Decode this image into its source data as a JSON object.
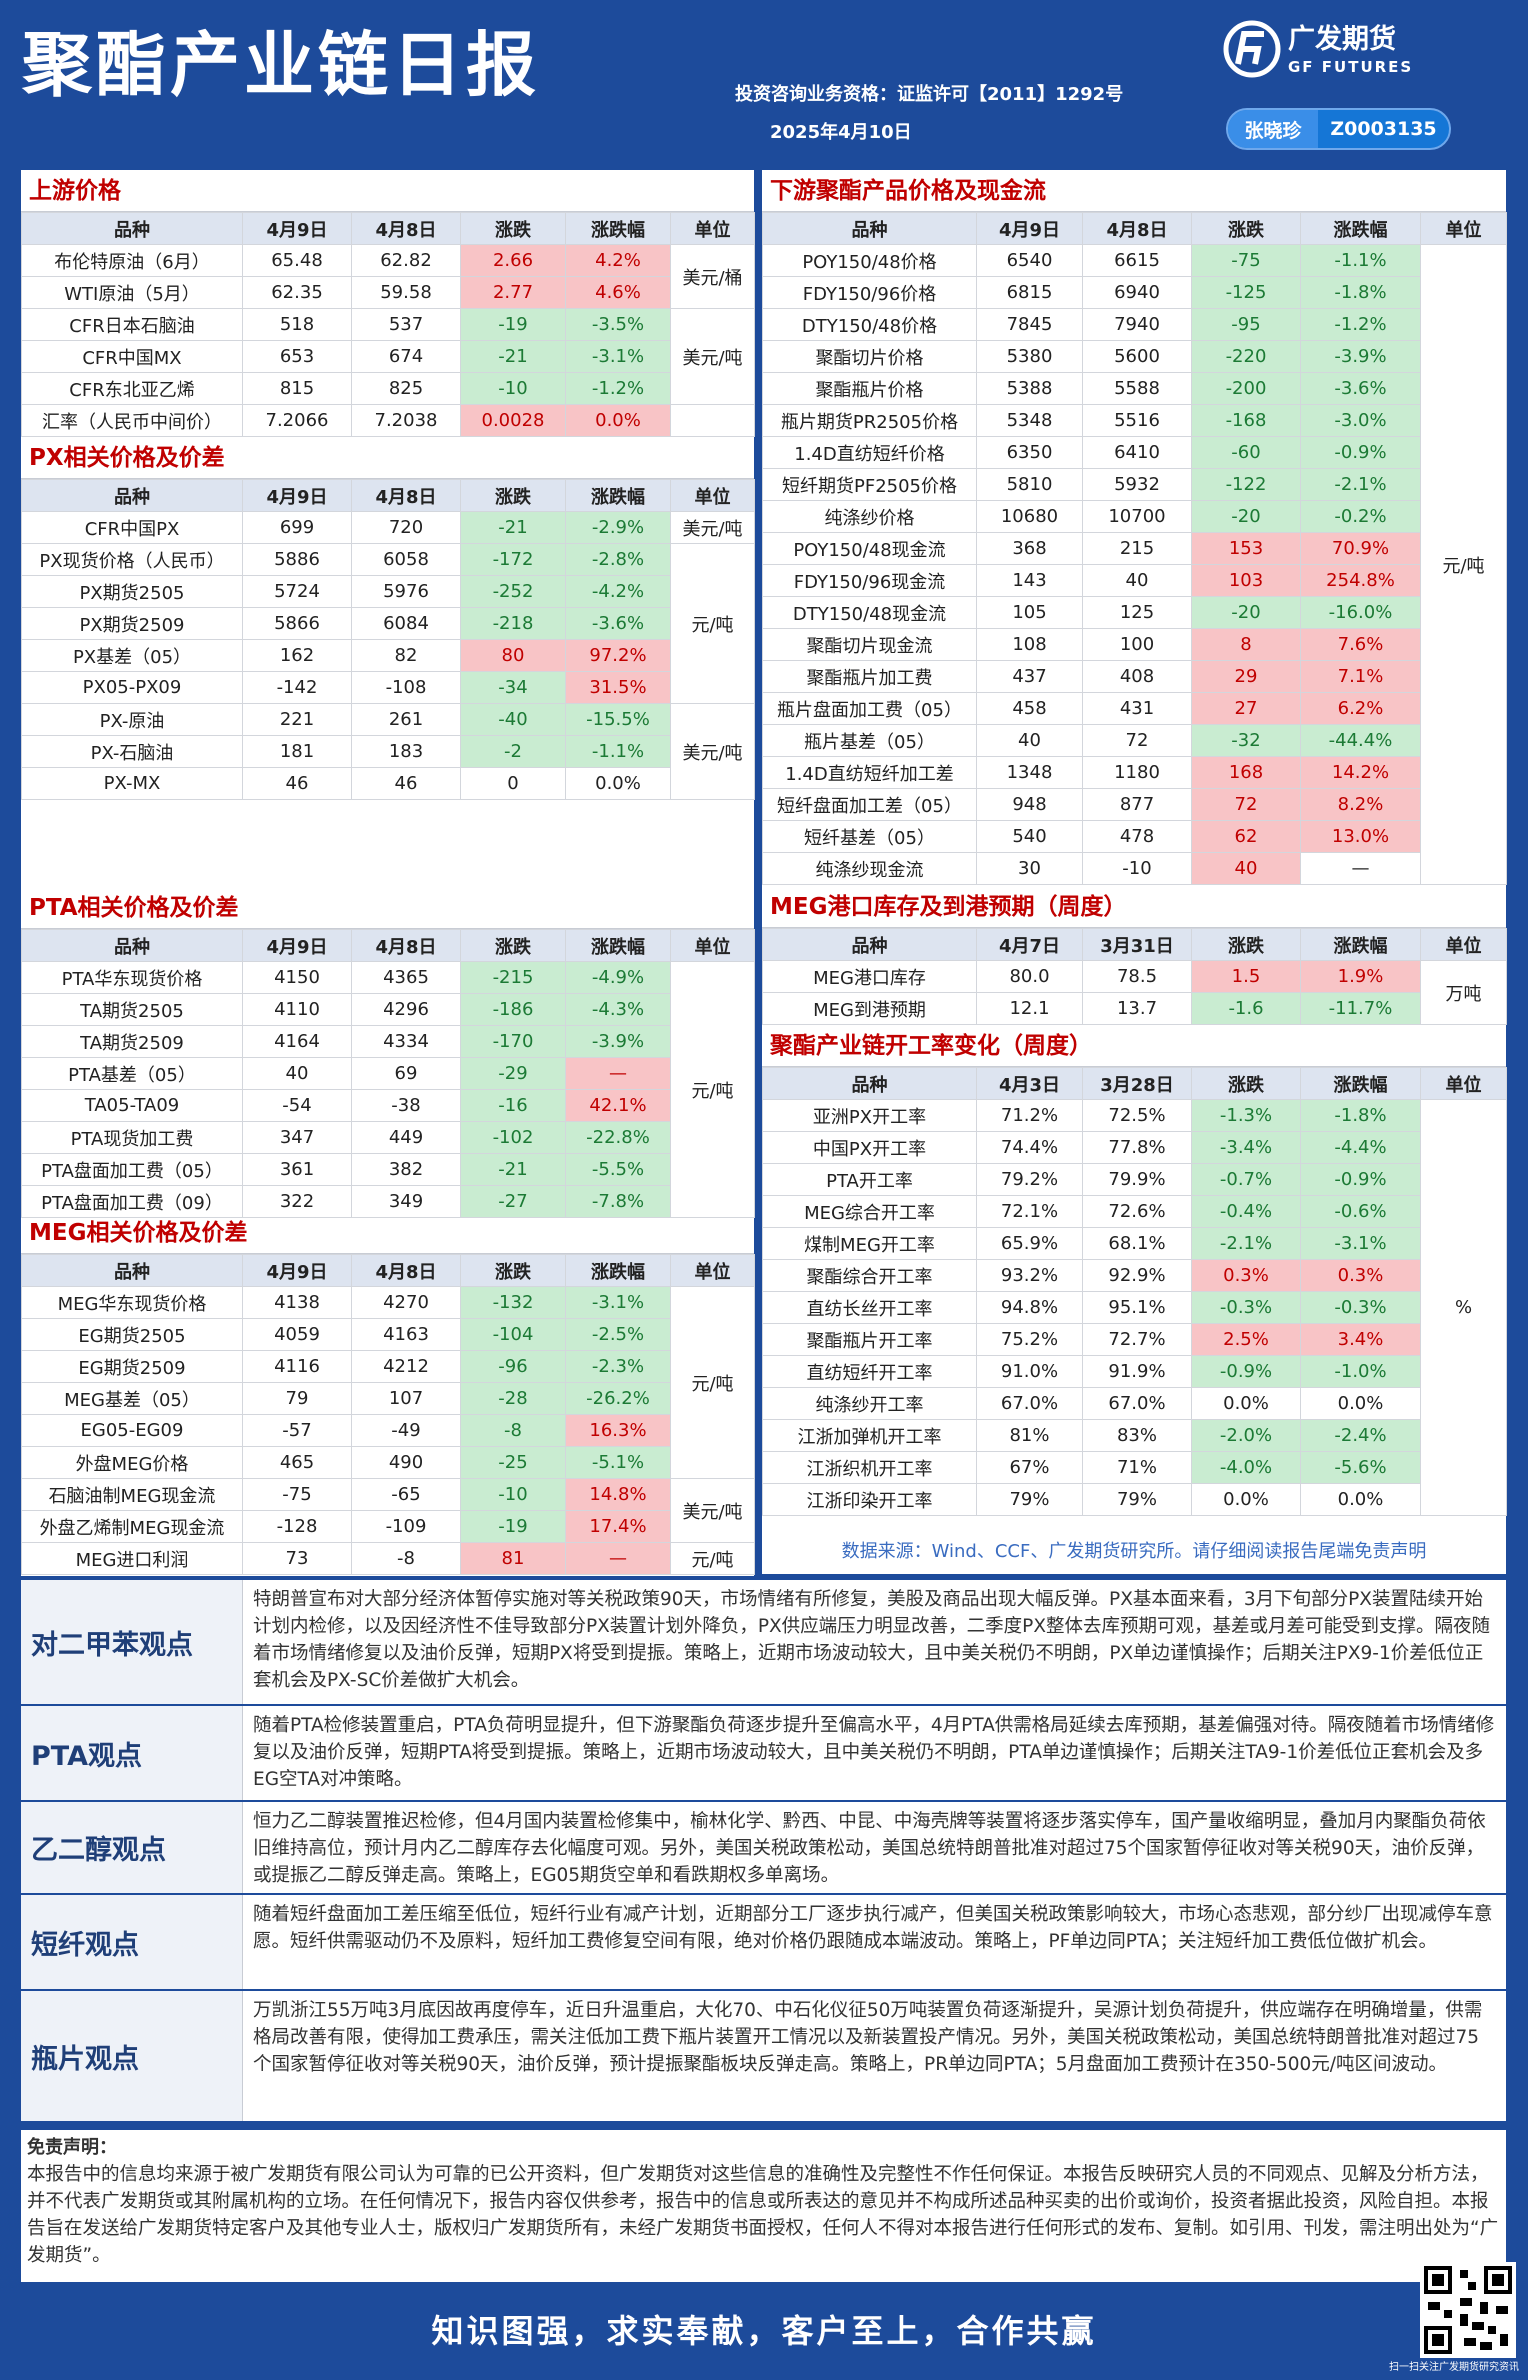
{
  "header": {
    "title": "聚酯产业链日报",
    "license": "投资咨询业务资格：证监许可【2011】1292号",
    "date": "2025年4月10日",
    "author": "张晓珍",
    "author_id": "Z0003135",
    "logo_cn": "广发期货",
    "logo_en": "GF FUTURES"
  },
  "tables": [
    {
      "title": "上游价格",
      "headers": [
        "品种",
        "4月9日",
        "4月8日",
        "涨跌",
        "涨跌幅",
        "单位"
      ],
      "rows": [
        [
          "布伦特原油（6月）",
          "65.48",
          "62.82",
          "2.66",
          "4.2%"
        ],
        [
          "WTI原油（5月）",
          "62.35",
          "59.58",
          "2.77",
          "4.6%"
        ],
        [
          "CFR日本石脑油",
          "518",
          "537",
          "-19",
          "-3.5%"
        ],
        [
          "CFR中国MX",
          "653",
          "674",
          "-21",
          "-3.1%"
        ],
        [
          "CFR东北亚乙烯",
          "815",
          "825",
          "-10",
          "-1.2%"
        ],
        [
          "汇率（人民币中间价）",
          "7.2066",
          "7.2038",
          "0.0028",
          "0.0%"
        ]
      ],
      "units": [
        {
          "text": "美元/桶",
          "start": 0,
          "span": 2
        },
        {
          "text": "美元/吨",
          "start": 2,
          "span": 3
        }
      ],
      "tone_overrides": [
        {
          "row": 5,
          "tones": [
            "up",
            "up"
          ]
        }
      ]
    },
    {
      "title": "PX相关价格及价差",
      "headers": [
        "品种",
        "4月9日",
        "4月8日",
        "涨跌",
        "涨跌幅",
        "单位"
      ],
      "rows": [
        [
          "CFR中国PX",
          "699",
          "720",
          "-21",
          "-2.9%"
        ],
        [
          "PX现货价格（人民币）",
          "5886",
          "6058",
          "-172",
          "-2.8%"
        ],
        [
          "PX期货2505",
          "5724",
          "5976",
          "-252",
          "-4.2%"
        ],
        [
          "PX期货2509",
          "5866",
          "6084",
          "-218",
          "-3.6%"
        ],
        [
          "PX基差（05）",
          "162",
          "82",
          "80",
          "97.2%"
        ],
        [
          "PX05-PX09",
          "-142",
          "-108",
          "-34",
          "31.5%"
        ],
        [
          "PX-原油",
          "221",
          "261",
          "-40",
          "-15.5%"
        ],
        [
          "PX-石脑油",
          "181",
          "183",
          "-2",
          "-1.1%"
        ],
        [
          "PX-MX",
          "46",
          "46",
          "0",
          "0.0%"
        ]
      ],
      "units": [
        {
          "text": "美元/吨",
          "start": 0,
          "span": 1
        },
        {
          "text": "元/吨",
          "start": 1,
          "span": 5
        },
        {
          "text": "美元/吨",
          "start": 6,
          "span": 3
        }
      ]
    },
    {
      "title": "PTA相关价格及价差",
      "headers": [
        "品种",
        "4月9日",
        "4月8日",
        "涨跌",
        "涨跌幅",
        "单位"
      ],
      "rows": [
        [
          "PTA华东现货价格",
          "4150",
          "4365",
          "-215",
          "-4.9%"
        ],
        [
          "TA期货2505",
          "4110",
          "4296",
          "-186",
          "-4.3%"
        ],
        [
          "TA期货2509",
          "4164",
          "4334",
          "-170",
          "-3.9%"
        ],
        [
          "PTA基差（05）",
          "40",
          "69",
          "-29",
          "—"
        ],
        [
          "TA05-TA09",
          "-54",
          "-38",
          "-16",
          "42.1%"
        ],
        [
          "PTA现货加工费",
          "347",
          "449",
          "-102",
          "-22.8%"
        ],
        [
          "PTA盘面加工费（05）",
          "361",
          "382",
          "-21",
          "-5.5%"
        ],
        [
          "PTA盘面加工费（09）",
          "322",
          "349",
          "-27",
          "-7.8%"
        ]
      ],
      "units": [
        {
          "text": "元/吨",
          "start": 0,
          "span": 8
        }
      ],
      "tone_overrides": [
        {
          "row": 3,
          "tones": [
            "down",
            "up"
          ]
        }
      ]
    },
    {
      "title": "MEG相关价格及价差",
      "headers": [
        "品种",
        "4月9日",
        "4月8日",
        "涨跌",
        "涨跌幅",
        "单位"
      ],
      "rows": [
        [
          "MEG华东现货价格",
          "4138",
          "4270",
          "-132",
          "-3.1%"
        ],
        [
          "EG期货2505",
          "4059",
          "4163",
          "-104",
          "-2.5%"
        ],
        [
          "EG期货2509",
          "4116",
          "4212",
          "-96",
          "-2.3%"
        ],
        [
          "MEG基差（05）",
          "79",
          "107",
          "-28",
          "-26.2%"
        ],
        [
          "EG05-EG09",
          "-57",
          "-49",
          "-8",
          "16.3%"
        ],
        [
          "外盘MEG价格",
          "465",
          "490",
          "-25",
          "-5.1%"
        ],
        [
          "石脑油制MEG现金流",
          "-75",
          "-65",
          "-10",
          "14.8%"
        ],
        [
          "外盘乙烯制MEG现金流",
          "-128",
          "-109",
          "-19",
          "17.4%"
        ],
        [
          "MEG进口利润",
          "73",
          "-8",
          "81",
          "—"
        ]
      ],
      "units": [
        {
          "text": "元/吨",
          "start": 0,
          "span": 6
        },
        {
          "text": "美元/吨",
          "start": 6,
          "span": 2
        },
        {
          "text": "元/吨",
          "start": 8,
          "span": 1
        }
      ],
      "tone_overrides": [
        {
          "row": 8,
          "tones": [
            "up",
            "up"
          ]
        }
      ]
    },
    {
      "title": "下游聚酯产品价格及现金流",
      "headers": [
        "品种",
        "4月9日",
        "4月8日",
        "涨跌",
        "涨跌幅",
        "单位"
      ],
      "rows": [
        [
          "POY150/48价格",
          "6540",
          "6615",
          "-75",
          "-1.1%"
        ],
        [
          "FDY150/96价格",
          "6815",
          "6940",
          "-125",
          "-1.8%"
        ],
        [
          "DTY150/48价格",
          "7845",
          "7940",
          "-95",
          "-1.2%"
        ],
        [
          "聚酯切片价格",
          "5380",
          "5600",
          "-220",
          "-3.9%"
        ],
        [
          "聚酯瓶片价格",
          "5388",
          "5588",
          "-200",
          "-3.6%"
        ],
        [
          "瓶片期货PR2505价格",
          "5348",
          "5516",
          "-168",
          "-3.0%"
        ],
        [
          "1.4D直纺短纤价格",
          "6350",
          "6410",
          "-60",
          "-0.9%"
        ],
        [
          "短纤期货PF2505价格",
          "5810",
          "5932",
          "-122",
          "-2.1%"
        ],
        [
          "纯涤纱价格",
          "10680",
          "10700",
          "-20",
          "-0.2%"
        ],
        [
          "POY150/48现金流",
          "368",
          "215",
          "153",
          "70.9%"
        ],
        [
          "FDY150/96现金流",
          "143",
          "40",
          "103",
          "254.8%"
        ],
        [
          "DTY150/48现金流",
          "105",
          "125",
          "-20",
          "-16.0%"
        ],
        [
          "聚酯切片现金流",
          "108",
          "100",
          "8",
          "7.6%"
        ],
        [
          "聚酯瓶片加工费",
          "437",
          "408",
          "29",
          "7.1%"
        ],
        [
          "瓶片盘面加工费（05）",
          "458",
          "431",
          "27",
          "6.2%"
        ],
        [
          "瓶片基差（05）",
          "40",
          "72",
          "-32",
          "-44.4%"
        ],
        [
          "1.4D直纺短纤加工差",
          "1348",
          "1180",
          "168",
          "14.2%"
        ],
        [
          "短纤盘面加工差（05）",
          "948",
          "877",
          "72",
          "8.2%"
        ],
        [
          "短纤基差（05）",
          "540",
          "478",
          "62",
          "13.0%"
        ],
        [
          "纯涤纱现金流",
          "30",
          "-10",
          "40",
          "—"
        ]
      ],
      "units": [
        {
          "text": "元/吨",
          "start": 0,
          "span": 20
        }
      ]
    },
    {
      "title": "MEG港口库存及到港预期（周度）",
      "headers": [
        "品种",
        "4月7日",
        "3月31日",
        "涨跌",
        "涨跌幅",
        "单位"
      ],
      "rows": [
        [
          "MEG港口库存",
          "80.0",
          "78.5",
          "1.5",
          "1.9%"
        ],
        [
          "MEG到港预期",
          "12.1",
          "13.7",
          "-1.6",
          "-11.7%"
        ]
      ],
      "units": [
        {
          "text": "万吨",
          "start": 0,
          "span": 2
        }
      ]
    },
    {
      "title": "聚酯产业链开工率变化（周度）",
      "headers": [
        "品种",
        "4月3日",
        "3月28日",
        "涨跌",
        "涨跌幅",
        "单位"
      ],
      "rows": [
        [
          "亚洲PX开工率",
          "71.2%",
          "72.5%",
          "-1.3%",
          "-1.8%"
        ],
        [
          "中国PX开工率",
          "74.4%",
          "77.8%",
          "-3.4%",
          "-4.4%"
        ],
        [
          "PTA开工率",
          "79.2%",
          "79.9%",
          "-0.7%",
          "-0.9%"
        ],
        [
          "MEG综合开工率",
          "72.1%",
          "72.6%",
          "-0.4%",
          "-0.6%"
        ],
        [
          "煤制MEG开工率",
          "65.9%",
          "68.1%",
          "-2.1%",
          "-3.1%"
        ],
        [
          "聚酯综合开工率",
          "93.2%",
          "92.9%",
          "0.3%",
          "0.3%"
        ],
        [
          "直纺长丝开工率",
          "94.8%",
          "95.1%",
          "-0.3%",
          "-0.3%"
        ],
        [
          "聚酯瓶片开工率",
          "75.2%",
          "72.7%",
          "2.5%",
          "3.4%"
        ],
        [
          "直纺短纤开工率",
          "91.0%",
          "91.9%",
          "-0.9%",
          "-1.0%"
        ],
        [
          "纯涤纱开工率",
          "67.0%",
          "67.0%",
          "0.0%",
          "0.0%"
        ],
        [
          "江浙加弹机开工率",
          "81%",
          "83%",
          "-2.0%",
          "-2.4%"
        ],
        [
          "江浙织机开工率",
          "67%",
          "71%",
          "-4.0%",
          "-5.6%"
        ],
        [
          "江浙印染开工率",
          "79%",
          "79%",
          "0.0%",
          "0.0%"
        ]
      ],
      "units": [
        {
          "text": "%",
          "start": 0,
          "span": 13
        }
      ]
    }
  ],
  "source_note": "数据来源：Wind、CCF、广发期货研究所。请仔细阅读报告尾端免责声明",
  "views": [
    {
      "label": "对二甲苯观点",
      "text": "特朗普宣布对大部分经济体暂停实施对等关税政策90天，市场情绪有所修复，美股及商品出现大幅反弹。PX基本面来看，3月下旬部分PX装置陆续开始计划内检修，以及因经济性不佳导致部分PX装置计划外降负，PX供应端压力明显改善，二季度PX整体去库预期可观，基差或月差可能受到支撑。隔夜随着市场情绪修复以及油价反弹，短期PX将受到提振。策略上，近期市场波动较大，且中美关税仍不明朗，PX单边谨慎操作；后期关注PX9-1价差低位正套机会及PX-SC价差做扩大机会。"
    },
    {
      "label": "PTA观点",
      "text": "随着PTA检修装置重启，PTA负荷明显提升，但下游聚酯负荷逐步提升至偏高水平，4月PTA供需格局延续去库预期，基差偏强对待。隔夜随着市场情绪修复以及油价反弹，短期PTA将受到提振。策略上，近期市场波动较大，且中美关税仍不明朗，PTA单边谨慎操作；后期关注TA9-1价差低位正套机会及多EG空TA对冲策略。"
    },
    {
      "label": "乙二醇观点",
      "text": "恒力乙二醇装置推迟检修，但4月国内装置检修集中，榆林化学、黔西、中昆、中海壳牌等装置将逐步落实停车，国产量收缩明显，叠加月内聚酯负荷依旧维持高位，预计月内乙二醇库存去化幅度可观。另外，美国关税政策松动，美国总统特朗普批准对超过75个国家暂停征收对等关税90天，油价反弹，或提振乙二醇反弹走高。策略上，EG05期货空单和看跌期权多单离场。"
    },
    {
      "label": "短纤观点",
      "text": "随着短纤盘面加工差压缩至低位，短纤行业有减产计划，近期部分工厂逐步执行减产，但美国关税政策影响较大，市场心态悲观，部分纱厂出现减停车意愿。短纤供需驱动仍不及原料，短纤加工费修复空间有限，绝对价格仍跟随成本端波动。策略上，PF单边同PTA；关注短纤加工费低位做扩机会。"
    },
    {
      "label": "瓶片观点",
      "text": "万凯浙江55万吨3月底因故再度停车，近日升温重启，大化70、中石化仪征50万吨装置负荷逐渐提升，吴源计划负荷提升，供应端存在明确增量，供需格局改善有限，使得加工费承压，需关注低加工费下瓶片装置开工情况以及新装置投产情况。另外，美国关税政策松动，美国总统特朗普批准对超过75个国家暂停征收对等关税90天，油价反弹，预计提振聚酯板块反弹走高。策略上，PR单边同PTA；5月盘面加工费预计在350-500元/吨区间波动。"
    }
  ],
  "disclaimer": {
    "title": "免责声明：",
    "text": "本报告中的信息均来源于被广发期货有限公司认为可靠的已公开资料，但广发期货对这些信息的准确性及完整性不作任何保证。本报告反映研究人员的不同观点、见解及分析方法，并不代表广发期货或其附属机构的立场。在任何情况下，报告内容仅供参考，报告中的信息或所表达的意见并不构成所述品种买卖的出价或询价，投资者据此投资，风险自担。本报告旨在发送给广发期货特定客户及其他专业人士，版权归广发期货所有，未经广发期货书面授权，任何人不得对本报告进行任何形式的发布、复制。如引用、刊发，需注明出处为“广发期货”。"
  },
  "slogan": "知识图强，求实奉献，客户至上，合作共赢",
  "qr_caption": "扫一扫关注广发期货研究资讯"
}
